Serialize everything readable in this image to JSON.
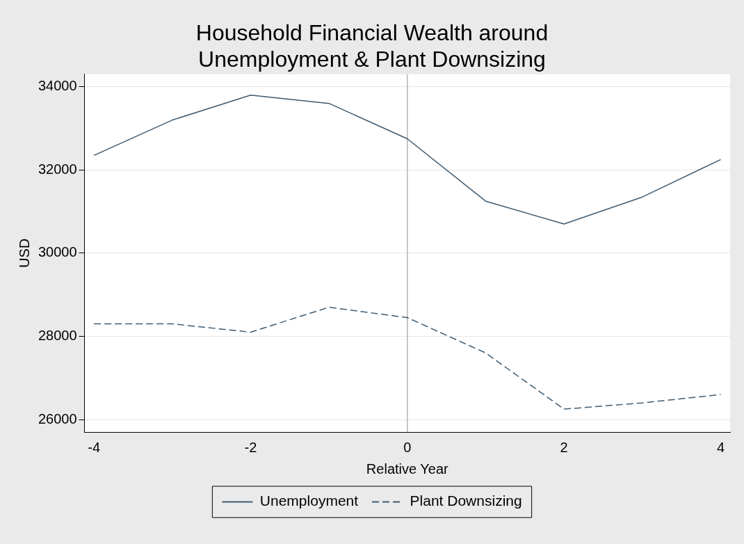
{
  "chart_data": {
    "type": "line",
    "title": "Household Financial Wealth around\nUnemployment & Plant Downsizing",
    "xlabel": "Relative Year",
    "ylabel": "USD",
    "x": [
      -4,
      -3,
      -2,
      -1,
      0,
      1,
      2,
      3,
      4
    ],
    "series": [
      {
        "name": "Unemployment",
        "color": "#3e5a70",
        "line_style": "solid",
        "values": [
          32350,
          33200,
          33800,
          33600,
          32750,
          31250,
          30700,
          31350,
          32250
        ]
      },
      {
        "name": "Plant Downsizing",
        "color": "#3e5a70",
        "line_style": "dashed",
        "values": [
          28300,
          28300,
          28100,
          28700,
          28450,
          27600,
          26250,
          26400,
          26600
        ]
      }
    ],
    "xlim": [
      -4.12,
      4.12
    ],
    "xticks": [
      -4,
      -2,
      0,
      2,
      4
    ],
    "ylim": [
      25700,
      34300
    ],
    "yticks": [
      26000,
      28000,
      30000,
      32000,
      34000
    ],
    "ref_lines": [
      {
        "axis": "x",
        "value": 0,
        "color": "#b4b4b4"
      }
    ],
    "grid": "y",
    "legend": "bottom",
    "marker": "none"
  }
}
